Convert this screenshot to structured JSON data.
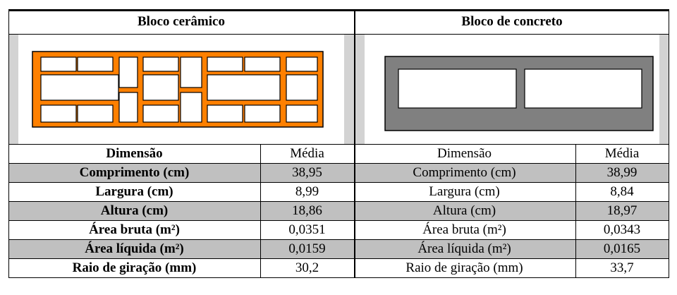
{
  "headers": {
    "ceramic": "Bloco cerâmico",
    "concrete": "Bloco de concreto"
  },
  "columns": {
    "dimension": "Dimensão",
    "mean": "Média"
  },
  "rows": [
    {
      "label": "Comprimento (cm)",
      "ceramic": "38,95",
      "concrete": "38,99"
    },
    {
      "label": "Largura (cm)",
      "ceramic": "8,99",
      "concrete": "8,84"
    },
    {
      "label": "Altura (cm)",
      "ceramic": "18,86",
      "concrete": "18,97"
    },
    {
      "label": "Área bruta (m²)",
      "ceramic": "0,0351",
      "concrete": "0,0343"
    },
    {
      "label": "Área líquida (m²)",
      "ceramic": "0,0159",
      "concrete": "0,0165"
    },
    {
      "label": "Raio de giração (mm)",
      "ceramic": "30,2",
      "concrete": "33,7"
    }
  ],
  "colors": {
    "ceramic_block": "#ff8000",
    "concrete_block": "#808080",
    "row_shade": "#c0c0c0",
    "figure_band": "#d3d3d3"
  }
}
